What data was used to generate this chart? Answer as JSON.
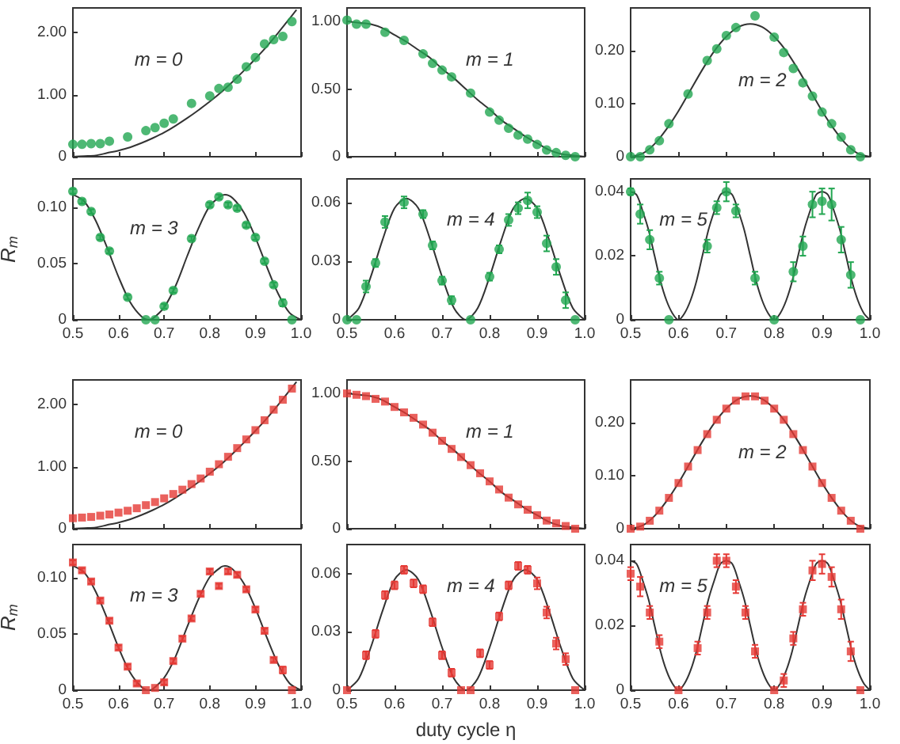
{
  "chart_data": [
    {
      "type": "scatter",
      "title": "m = 0",
      "tick_labels": "y",
      "xlim": [
        0.5,
        1
      ],
      "xticks": [
        {
          "value": 0.5,
          "label": null
        },
        {
          "value": 0.6,
          "label": null
        },
        {
          "value": 0.7,
          "label": null
        },
        {
          "value": 0.8,
          "label": null
        },
        {
          "value": 0.9,
          "label": null
        },
        {
          "value": 1,
          "label": null
        }
      ],
      "ylim": [
        0,
        2.4
      ],
      "yticks": [
        0,
        {
          "value": 1,
          "label": "1.00"
        },
        {
          "value": 2,
          "label": "2.00"
        }
      ],
      "series": [
        {
          "color": "#22a651",
          "marker": "circle",
          "x": [
            0.5,
            0.52,
            0.54,
            0.56,
            0.58,
            0.62,
            0.66,
            0.68,
            0.7,
            0.72,
            0.76,
            0.8,
            0.82,
            0.84,
            0.86,
            0.88,
            0.9,
            0.92,
            0.94,
            0.96,
            0.98
          ],
          "values": [
            0.2,
            0.2,
            0.21,
            0.21,
            0.25,
            0.32,
            0.42,
            0.47,
            0.54,
            0.61,
            0.86,
            0.98,
            1.1,
            1.12,
            1.25,
            1.45,
            1.6,
            1.82,
            1.89,
            1.94,
            2.18
          ]
        },
        {
          "type": "line",
          "color": "#333333",
          "marker": "none",
          "x": [
            0.5,
            0.525,
            0.55,
            0.575,
            0.6,
            0.625,
            0.65,
            0.675,
            0.7,
            0.725,
            0.75,
            0.775,
            0.8,
            0.825,
            0.85,
            0.875,
            0.9,
            0.925,
            0.95,
            0.975,
            0.99
          ],
          "values": [
            0,
            0.01,
            0.02,
            0.06,
            0.1,
            0.15,
            0.22,
            0.3,
            0.39,
            0.5,
            0.62,
            0.75,
            0.89,
            1.04,
            1.21,
            1.39,
            1.58,
            1.78,
            2,
            2.23,
            2.37
          ]
        }
      ]
    },
    {
      "type": "scatter",
      "title": "m = 1",
      "tick_labels": "y",
      "xlim": [
        0.5,
        1
      ],
      "xticks": [
        {
          "value": 0.5,
          "label": null
        },
        {
          "value": 0.6,
          "label": null
        },
        {
          "value": 0.7,
          "label": null
        },
        {
          "value": 0.8,
          "label": null
        },
        {
          "value": 0.9,
          "label": null
        },
        {
          "value": 1,
          "label": null
        }
      ],
      "ylim": [
        0,
        1.1
      ],
      "yticks": [
        0,
        {
          "value": 0.5,
          "label": "0.50"
        },
        {
          "value": 1,
          "label": "1.00"
        }
      ],
      "series": [
        {
          "color": "#22a651",
          "marker": "circle",
          "x": [
            0.5,
            0.52,
            0.54,
            0.58,
            0.62,
            0.66,
            0.68,
            0.7,
            0.72,
            0.76,
            0.8,
            0.82,
            0.84,
            0.86,
            0.88,
            0.9,
            0.92,
            0.94,
            0.96,
            0.98
          ],
          "values": [
            1.01,
            0.98,
            0.98,
            0.92,
            0.86,
            0.76,
            0.69,
            0.64,
            0.59,
            0.47,
            0.33,
            0.27,
            0.21,
            0.16,
            0.13,
            0.09,
            0.05,
            0.03,
            0.01,
            0
          ]
        },
        {
          "type": "line",
          "color": "#333333",
          "marker": "none",
          "x": [
            0.5,
            0.525,
            0.55,
            0.575,
            0.6,
            0.625,
            0.65,
            0.675,
            0.7,
            0.725,
            0.75,
            0.775,
            0.8,
            0.825,
            0.85,
            0.875,
            0.9,
            0.925,
            0.95,
            0.975,
            1
          ],
          "values": [
            1,
            0.99,
            0.98,
            0.95,
            0.9,
            0.85,
            0.79,
            0.73,
            0.65,
            0.58,
            0.5,
            0.42,
            0.35,
            0.27,
            0.21,
            0.15,
            0.1,
            0.05,
            0.02,
            0.01,
            0
          ]
        }
      ]
    },
    {
      "type": "scatter",
      "title": "m = 2",
      "tick_labels": "y",
      "xlim": [
        0.5,
        1
      ],
      "xticks": [
        {
          "value": 0.5,
          "label": null
        },
        {
          "value": 0.6,
          "label": null
        },
        {
          "value": 0.7,
          "label": null
        },
        {
          "value": 0.8,
          "label": null
        },
        {
          "value": 0.9,
          "label": null
        },
        {
          "value": 1,
          "label": null
        }
      ],
      "ylim": [
        0,
        0.28
      ],
      "yticks": [
        0,
        {
          "value": 0.1,
          "label": "0.10"
        },
        {
          "value": 0.2,
          "label": "0.20"
        }
      ],
      "series": [
        {
          "color": "#22a651",
          "marker": "circle",
          "x": [
            0.5,
            0.52,
            0.54,
            0.56,
            0.58,
            0.62,
            0.66,
            0.68,
            0.7,
            0.72,
            0.76,
            0.8,
            0.82,
            0.84,
            0.86,
            0.88,
            0.9,
            0.92,
            0.94,
            0.96,
            0.98
          ],
          "values": [
            0,
            0,
            0.013,
            0.03,
            0.062,
            0.118,
            0.181,
            0.203,
            0.228,
            0.243,
            0.265,
            0.225,
            0.196,
            0.166,
            0.139,
            0.114,
            0.084,
            0.062,
            0.037,
            0.013,
            0
          ]
        },
        {
          "type": "line",
          "color": "#333333",
          "marker": "none",
          "x": [
            0.5,
            0.525,
            0.55,
            0.575,
            0.6,
            0.625,
            0.65,
            0.675,
            0.7,
            0.725,
            0.75,
            0.775,
            0.8,
            0.825,
            0.85,
            0.875,
            0.9,
            0.925,
            0.95,
            0.975,
            1
          ],
          "values": [
            0,
            0.006,
            0.024,
            0.052,
            0.086,
            0.125,
            0.164,
            0.199,
            0.226,
            0.244,
            0.25,
            0.244,
            0.226,
            0.199,
            0.164,
            0.125,
            0.086,
            0.052,
            0.024,
            0.006,
            0
          ]
        }
      ]
    },
    {
      "type": "scatter",
      "title": "m = 3",
      "ylabel": "R$_{m}$",
      "xlim": [
        0.5,
        1
      ],
      "xticks": [
        0.5,
        0.6,
        0.7,
        0.8,
        0.9,
        {
          "value": 1,
          "label": "1.0"
        }
      ],
      "ylim": [
        0,
        0.125
      ],
      "yticks": [
        0,
        0.05,
        {
          "value": 0.1,
          "label": "0.10"
        }
      ],
      "series": [
        {
          "color": "#22a651",
          "marker": "circle",
          "x": [
            0.5,
            0.52,
            0.54,
            0.56,
            0.58,
            0.62,
            0.66,
            0.68,
            0.7,
            0.72,
            0.76,
            0.8,
            0.82,
            0.84,
            0.86,
            0.88,
            0.9,
            0.92,
            0.94,
            0.96,
            0.98
          ],
          "values": [
            0.114,
            0.105,
            0.096,
            0.073,
            0.061,
            0.02,
            0,
            0,
            0.012,
            0.026,
            0.072,
            0.102,
            0.109,
            0.102,
            0.099,
            0.084,
            0.073,
            0.052,
            0.031,
            0.015,
            0
          ],
          "errors": [
            0.002,
            0.002,
            0.002,
            0.002,
            0.002,
            0.002,
            null,
            null,
            0.002,
            0.002,
            0.002,
            0.002,
            0.002,
            0.002,
            0.002,
            0.002,
            0.002,
            0.002,
            0.002,
            0.003,
            null
          ]
        },
        {
          "type": "line",
          "color": "#333333",
          "marker": "none",
          "x": [
            0.5,
            0.525,
            0.55,
            0.575,
            0.6,
            0.625,
            0.65,
            0.6667,
            0.675,
            0.7,
            0.725,
            0.75,
            0.775,
            0.8,
            0.825,
            0.8333,
            0.85,
            0.875,
            0.9,
            0.925,
            0.95,
            0.975,
            1
          ],
          "values": [
            0.111,
            0.105,
            0.088,
            0.064,
            0.038,
            0.016,
            0.003,
            0,
            0.001,
            0.011,
            0.03,
            0.056,
            0.081,
            0.101,
            0.11,
            0.111,
            0.108,
            0.095,
            0.073,
            0.047,
            0.023,
            0.006,
            0
          ]
        }
      ]
    },
    {
      "type": "scatter",
      "title": "m = 4",
      "xlim": [
        0.5,
        1
      ],
      "xticks": [
        0.5,
        0.6,
        0.7,
        0.8,
        0.9,
        {
          "value": 1,
          "label": "1.0"
        }
      ],
      "ylim": [
        0,
        0.072
      ],
      "yticks": [
        0,
        0.03,
        0.06
      ],
      "series": [
        {
          "color": "#22a651",
          "marker": "circle",
          "x": [
            0.5,
            0.52,
            0.54,
            0.56,
            0.58,
            0.62,
            0.66,
            0.68,
            0.7,
            0.72,
            0.76,
            0.8,
            0.82,
            0.84,
            0.86,
            0.88,
            0.9,
            0.92,
            0.94,
            0.96,
            0.98
          ],
          "values": [
            0,
            0,
            0.017,
            0.029,
            0.05,
            0.06,
            0.054,
            0.038,
            0.02,
            0.01,
            0,
            0.022,
            0.036,
            0.051,
            0.057,
            0.061,
            0.055,
            0.039,
            0.027,
            0.01,
            0
          ],
          "errors": [
            null,
            null,
            0.003,
            0.002,
            0.003,
            0.003,
            0.002,
            0.002,
            0.002,
            0.002,
            null,
            0.002,
            0.002,
            0.003,
            0.003,
            0.004,
            0.003,
            0.004,
            0.004,
            0.004,
            null
          ]
        },
        {
          "type": "line",
          "color": "#333333",
          "marker": "none",
          "x": [
            0.5,
            0.525,
            0.55,
            0.575,
            0.6,
            0.625,
            0.65,
            0.675,
            0.7,
            0.725,
            0.75,
            0.775,
            0.8,
            0.825,
            0.85,
            0.875,
            0.9,
            0.925,
            0.95,
            0.975,
            1
          ],
          "values": [
            0,
            0.006,
            0.022,
            0.041,
            0.057,
            0.062,
            0.057,
            0.041,
            0.022,
            0.006,
            0,
            0.006,
            0.022,
            0.041,
            0.057,
            0.062,
            0.057,
            0.041,
            0.022,
            0.006,
            0
          ]
        }
      ]
    },
    {
      "type": "scatter",
      "title": "m = 5",
      "xlim": [
        0.5,
        1
      ],
      "xticks": [
        0.5,
        0.6,
        0.7,
        0.8,
        0.9,
        {
          "value": 1,
          "label": "1.0"
        }
      ],
      "ylim": [
        0,
        0.044
      ],
      "yticks": [
        0,
        0.02,
        0.04
      ],
      "series": [
        {
          "color": "#22a651",
          "marker": "circle",
          "x": [
            0.5,
            0.52,
            0.54,
            0.56,
            0.58,
            0.66,
            0.68,
            0.7,
            0.72,
            0.76,
            0.8,
            0.84,
            0.86,
            0.88,
            0.9,
            0.92,
            0.94,
            0.96,
            0.98
          ],
          "values": [
            0.04,
            0.033,
            0.025,
            0.013,
            0,
            0.023,
            0.035,
            0.04,
            0.034,
            0.013,
            0,
            0.015,
            0.023,
            0.036,
            0.037,
            0.036,
            0.025,
            0.014,
            0
          ],
          "errors": [
            0.001,
            0.003,
            0.003,
            0.002,
            null,
            0.002,
            0.002,
            0.003,
            0.002,
            0.002,
            null,
            0.003,
            0.003,
            0.004,
            0.004,
            0.005,
            0.004,
            0.004,
            null
          ]
        },
        {
          "type": "line",
          "color": "#333333",
          "marker": "none",
          "x": [
            0.5,
            0.5125,
            0.525,
            0.5375,
            0.55,
            0.5625,
            0.575,
            0.5875,
            0.6,
            0.6125,
            0.625,
            0.6375,
            0.65,
            0.6625,
            0.675,
            0.6875,
            0.7,
            0.7125,
            0.725,
            0.7375,
            0.75,
            0.7625,
            0.775,
            0.7875,
            0.8,
            0.8125,
            0.825,
            0.8375,
            0.85,
            0.8625,
            0.875,
            0.8875,
            0.9,
            0.9125,
            0.925,
            0.9375,
            0.95,
            0.9625,
            0.975,
            0.9875,
            1
          ],
          "values": [
            0.04,
            0.039,
            0.034,
            0.028,
            0.02,
            0.012,
            0.006,
            0.002,
            0,
            0.002,
            0.006,
            0.012,
            0.02,
            0.028,
            0.034,
            0.039,
            0.04,
            0.039,
            0.034,
            0.028,
            0.02,
            0.012,
            0.006,
            0.002,
            0,
            0.002,
            0.006,
            0.012,
            0.02,
            0.028,
            0.034,
            0.039,
            0.04,
            0.039,
            0.034,
            0.028,
            0.02,
            0.012,
            0.006,
            0.002,
            0
          ]
        }
      ]
    },
    {
      "type": "scatter",
      "title": "m = 0",
      "tick_labels": "y",
      "xlim": [
        0.5,
        1
      ],
      "xticks": [
        {
          "value": 0.5,
          "label": null
        },
        {
          "value": 0.6,
          "label": null
        },
        {
          "value": 0.7,
          "label": null
        },
        {
          "value": 0.8,
          "label": null
        },
        {
          "value": 0.9,
          "label": null
        },
        {
          "value": 1,
          "label": null
        }
      ],
      "ylim": [
        0,
        2.4
      ],
      "yticks": [
        0,
        {
          "value": 1,
          "label": "1.00"
        },
        {
          "value": 2,
          "label": "2.00"
        }
      ],
      "series": [
        {
          "color": "#e53935",
          "marker": "square",
          "x": [
            0.5,
            0.52,
            0.54,
            0.56,
            0.58,
            0.6,
            0.62,
            0.64,
            0.66,
            0.68,
            0.7,
            0.72,
            0.74,
            0.76,
            0.78,
            0.8,
            0.82,
            0.84,
            0.86,
            0.88,
            0.9,
            0.92,
            0.94,
            0.96,
            0.98
          ],
          "values": [
            0.17,
            0.18,
            0.19,
            0.21,
            0.23,
            0.26,
            0.29,
            0.33,
            0.38,
            0.43,
            0.49,
            0.56,
            0.63,
            0.72,
            0.81,
            0.92,
            1.04,
            1.16,
            1.3,
            1.44,
            1.59,
            1.75,
            1.92,
            2.08,
            2.26
          ]
        },
        {
          "type": "line",
          "color": "#333333",
          "marker": "none",
          "x": [
            0.5,
            0.525,
            0.55,
            0.575,
            0.6,
            0.625,
            0.65,
            0.675,
            0.7,
            0.725,
            0.75,
            0.775,
            0.8,
            0.825,
            0.85,
            0.875,
            0.9,
            0.925,
            0.95,
            0.975,
            0.99
          ],
          "values": [
            0,
            0.01,
            0.02,
            0.06,
            0.1,
            0.15,
            0.22,
            0.3,
            0.39,
            0.5,
            0.62,
            0.75,
            0.89,
            1.04,
            1.21,
            1.39,
            1.58,
            1.78,
            2,
            2.23,
            2.37
          ]
        }
      ]
    },
    {
      "type": "scatter",
      "title": "m = 1",
      "tick_labels": "y",
      "xlim": [
        0.5,
        1
      ],
      "xticks": [
        {
          "value": 0.5,
          "label": null
        },
        {
          "value": 0.6,
          "label": null
        },
        {
          "value": 0.7,
          "label": null
        },
        {
          "value": 0.8,
          "label": null
        },
        {
          "value": 0.9,
          "label": null
        },
        {
          "value": 1,
          "label": null
        }
      ],
      "ylim": [
        0,
        1.1
      ],
      "yticks": [
        0,
        {
          "value": 0.5,
          "label": "0.50"
        },
        {
          "value": 1,
          "label": "1.00"
        }
      ],
      "series": [
        {
          "color": "#e53935",
          "marker": "square",
          "x": [
            0.5,
            0.52,
            0.54,
            0.56,
            0.58,
            0.6,
            0.62,
            0.64,
            0.66,
            0.68,
            0.7,
            0.72,
            0.74,
            0.76,
            0.78,
            0.8,
            0.82,
            0.84,
            0.86,
            0.88,
            0.9,
            0.92,
            0.94,
            0.96,
            0.98
          ],
          "values": [
            1,
            0.99,
            0.98,
            0.96,
            0.94,
            0.9,
            0.86,
            0.82,
            0.77,
            0.71,
            0.65,
            0.59,
            0.53,
            0.47,
            0.41,
            0.35,
            0.29,
            0.23,
            0.18,
            0.14,
            0.1,
            0.06,
            0.04,
            0.02,
            0
          ]
        },
        {
          "type": "line",
          "color": "#333333",
          "marker": "none",
          "x": [
            0.5,
            0.525,
            0.55,
            0.575,
            0.6,
            0.625,
            0.65,
            0.675,
            0.7,
            0.725,
            0.75,
            0.775,
            0.8,
            0.825,
            0.85,
            0.875,
            0.9,
            0.925,
            0.95,
            0.975,
            1
          ],
          "values": [
            1,
            0.99,
            0.98,
            0.95,
            0.9,
            0.85,
            0.79,
            0.73,
            0.65,
            0.58,
            0.5,
            0.42,
            0.35,
            0.27,
            0.21,
            0.15,
            0.1,
            0.05,
            0.02,
            0.01,
            0
          ]
        }
      ]
    },
    {
      "type": "scatter",
      "title": "m = 2",
      "tick_labels": "y",
      "xlim": [
        0.5,
        1
      ],
      "xticks": [
        {
          "value": 0.5,
          "label": null
        },
        {
          "value": 0.6,
          "label": null
        },
        {
          "value": 0.7,
          "label": null
        },
        {
          "value": 0.8,
          "label": null
        },
        {
          "value": 0.9,
          "label": null
        },
        {
          "value": 1,
          "label": null
        }
      ],
      "ylim": [
        0,
        0.28
      ],
      "yticks": [
        0,
        {
          "value": 0.1,
          "label": "0.10"
        },
        {
          "value": 0.2,
          "label": "0.20"
        }
      ],
      "series": [
        {
          "color": "#e53935",
          "marker": "square",
          "x": [
            0.5,
            0.52,
            0.54,
            0.56,
            0.58,
            0.6,
            0.62,
            0.64,
            0.66,
            0.68,
            0.7,
            0.72,
            0.74,
            0.76,
            0.78,
            0.8,
            0.82,
            0.84,
            0.86,
            0.88,
            0.9,
            0.92,
            0.94,
            0.96,
            0.98
          ],
          "values": [
            0,
            0.004,
            0.015,
            0.034,
            0.058,
            0.086,
            0.117,
            0.148,
            0.178,
            0.205,
            0.226,
            0.241,
            0.249,
            0.249,
            0.241,
            0.226,
            0.205,
            0.178,
            0.148,
            0.117,
            0.086,
            0.058,
            0.034,
            0.015,
            0
          ]
        },
        {
          "type": "line",
          "color": "#333333",
          "marker": "none",
          "x": [
            0.5,
            0.525,
            0.55,
            0.575,
            0.6,
            0.625,
            0.65,
            0.675,
            0.7,
            0.725,
            0.75,
            0.775,
            0.8,
            0.825,
            0.85,
            0.875,
            0.9,
            0.925,
            0.95,
            0.975,
            1
          ],
          "values": [
            0,
            0.006,
            0.024,
            0.052,
            0.086,
            0.125,
            0.164,
            0.199,
            0.226,
            0.244,
            0.25,
            0.244,
            0.226,
            0.199,
            0.164,
            0.125,
            0.086,
            0.052,
            0.024,
            0.006,
            0
          ]
        }
      ]
    },
    {
      "type": "scatter",
      "title": "m = 3",
      "ylabel": "R$_{m}$",
      "xlim": [
        0.5,
        1
      ],
      "xticks": [
        0.5,
        0.6,
        0.7,
        0.8,
        0.9,
        {
          "value": 1,
          "label": "1.0"
        }
      ],
      "ylim": [
        0,
        0.13
      ],
      "yticks": [
        0,
        0.05,
        {
          "value": 0.1,
          "label": "0.10"
        }
      ],
      "series": [
        {
          "color": "#e53935",
          "marker": "square",
          "x": [
            0.5,
            0.52,
            0.54,
            0.56,
            0.58,
            0.6,
            0.62,
            0.64,
            0.66,
            0.68,
            0.7,
            0.72,
            0.74,
            0.76,
            0.78,
            0.8,
            0.82,
            0.84,
            0.86,
            0.88,
            0.9,
            0.92,
            0.94,
            0.96,
            0.98
          ],
          "values": [
            0.114,
            0.107,
            0.097,
            0.08,
            0.062,
            0.038,
            0.021,
            0.006,
            0,
            0.002,
            0.007,
            0.026,
            0.046,
            0.064,
            0.086,
            0.106,
            0.093,
            0.106,
            0.103,
            0.09,
            0.072,
            0.053,
            0.027,
            0.018,
            0
          ],
          "errors": [
            0.002,
            0.002,
            0.002,
            0.002,
            0.002,
            0.002,
            0.002,
            0.002,
            null,
            null,
            0.002,
            0.002,
            0.002,
            0.002,
            0.002,
            0.002,
            0.002,
            0.002,
            0.002,
            0.002,
            0.002,
            0.002,
            0.002,
            0.003,
            null
          ]
        },
        {
          "type": "line",
          "color": "#333333",
          "marker": "none",
          "x": [
            0.5,
            0.525,
            0.55,
            0.575,
            0.6,
            0.625,
            0.65,
            0.6667,
            0.675,
            0.7,
            0.725,
            0.75,
            0.775,
            0.8,
            0.825,
            0.8333,
            0.85,
            0.875,
            0.9,
            0.925,
            0.95,
            0.975,
            1
          ],
          "values": [
            0.111,
            0.105,
            0.088,
            0.064,
            0.038,
            0.016,
            0.003,
            0,
            0.001,
            0.011,
            0.03,
            0.056,
            0.081,
            0.101,
            0.11,
            0.111,
            0.108,
            0.095,
            0.073,
            0.047,
            0.023,
            0.006,
            0
          ]
        }
      ]
    },
    {
      "type": "scatter",
      "title": "m = 4",
      "xlabel": "duty cycle η",
      "xlim": [
        0.5,
        1
      ],
      "xticks": [
        0.5,
        0.6,
        0.7,
        0.8,
        0.9,
        {
          "value": 1,
          "label": "1.0"
        }
      ],
      "ylim": [
        0,
        0.075
      ],
      "yticks": [
        0,
        0.03,
        0.06
      ],
      "series": [
        {
          "color": "#e53935",
          "marker": "square",
          "x": [
            0.5,
            0.54,
            0.56,
            0.58,
            0.6,
            0.62,
            0.64,
            0.66,
            0.68,
            0.7,
            0.72,
            0.74,
            0.76,
            0.78,
            0.8,
            0.82,
            0.84,
            0.86,
            0.88,
            0.9,
            0.92,
            0.94,
            0.96,
            0.98
          ],
          "values": [
            0,
            0.018,
            0.029,
            0.049,
            0.054,
            0.062,
            0.055,
            0.052,
            0.035,
            0.018,
            0.009,
            0,
            0,
            0.019,
            0.013,
            0.038,
            0.054,
            0.064,
            0.062,
            0.055,
            0.04,
            0.024,
            0.016,
            0
          ],
          "errors": [
            null,
            0.002,
            0.002,
            0.002,
            0.002,
            0.002,
            0.002,
            0.002,
            0.002,
            0.002,
            0.002,
            null,
            null,
            0.002,
            0.002,
            0.002,
            0.002,
            0.002,
            0.002,
            0.003,
            0.003,
            0.003,
            0.003,
            null
          ]
        },
        {
          "type": "line",
          "color": "#333333",
          "marker": "none",
          "x": [
            0.5,
            0.525,
            0.55,
            0.575,
            0.6,
            0.625,
            0.65,
            0.675,
            0.7,
            0.725,
            0.75,
            0.775,
            0.8,
            0.825,
            0.85,
            0.875,
            0.9,
            0.925,
            0.95,
            0.975,
            1
          ],
          "values": [
            0,
            0.006,
            0.022,
            0.041,
            0.057,
            0.062,
            0.057,
            0.041,
            0.022,
            0.006,
            0,
            0.006,
            0.022,
            0.041,
            0.057,
            0.062,
            0.057,
            0.041,
            0.022,
            0.006,
            0
          ]
        }
      ]
    },
    {
      "type": "scatter",
      "title": "m = 5",
      "xlim": [
        0.5,
        1
      ],
      "xticks": [
        0.5,
        0.6,
        0.7,
        0.8,
        0.9,
        {
          "value": 1,
          "label": "1.0"
        }
      ],
      "ylim": [
        0,
        0.045
      ],
      "yticks": [
        0,
        0.02,
        0.04
      ],
      "series": [
        {
          "color": "#e53935",
          "marker": "square",
          "x": [
            0.5,
            0.52,
            0.54,
            0.56,
            0.6,
            0.64,
            0.66,
            0.68,
            0.7,
            0.72,
            0.74,
            0.76,
            0.8,
            0.82,
            0.84,
            0.86,
            0.88,
            0.9,
            0.92,
            0.94,
            0.96,
            0.98
          ],
          "values": [
            0.036,
            0.032,
            0.024,
            0.015,
            0,
            0.013,
            0.024,
            0.04,
            0.04,
            0.032,
            0.024,
            0.012,
            0,
            0.003,
            0.016,
            0.025,
            0.037,
            0.039,
            0.035,
            0.025,
            0.012,
            0
          ],
          "errors": [
            0.002,
            0.003,
            0.002,
            0.002,
            null,
            0.002,
            0.002,
            0.002,
            0.002,
            0.002,
            0.002,
            0.002,
            null,
            0.002,
            0.002,
            0.002,
            0.003,
            0.003,
            0.003,
            0.003,
            0.003,
            null
          ]
        },
        {
          "type": "line",
          "color": "#333333",
          "marker": "none",
          "x": [
            0.5,
            0.5125,
            0.525,
            0.5375,
            0.55,
            0.5625,
            0.575,
            0.5875,
            0.6,
            0.6125,
            0.625,
            0.6375,
            0.65,
            0.6625,
            0.675,
            0.6875,
            0.7,
            0.7125,
            0.725,
            0.7375,
            0.75,
            0.7625,
            0.775,
            0.7875,
            0.8,
            0.8125,
            0.825,
            0.8375,
            0.85,
            0.8625,
            0.875,
            0.8875,
            0.9,
            0.9125,
            0.925,
            0.9375,
            0.95,
            0.9625,
            0.975,
            0.9875,
            1
          ],
          "values": [
            0.04,
            0.039,
            0.034,
            0.028,
            0.02,
            0.012,
            0.006,
            0.002,
            0,
            0.002,
            0.006,
            0.012,
            0.02,
            0.028,
            0.034,
            0.039,
            0.04,
            0.039,
            0.034,
            0.028,
            0.02,
            0.012,
            0.006,
            0.002,
            0,
            0.002,
            0.006,
            0.012,
            0.02,
            0.028,
            0.034,
            0.039,
            0.04,
            0.039,
            0.034,
            0.028,
            0.02,
            0.012,
            0.006,
            0.002,
            0
          ]
        }
      ]
    }
  ]
}
